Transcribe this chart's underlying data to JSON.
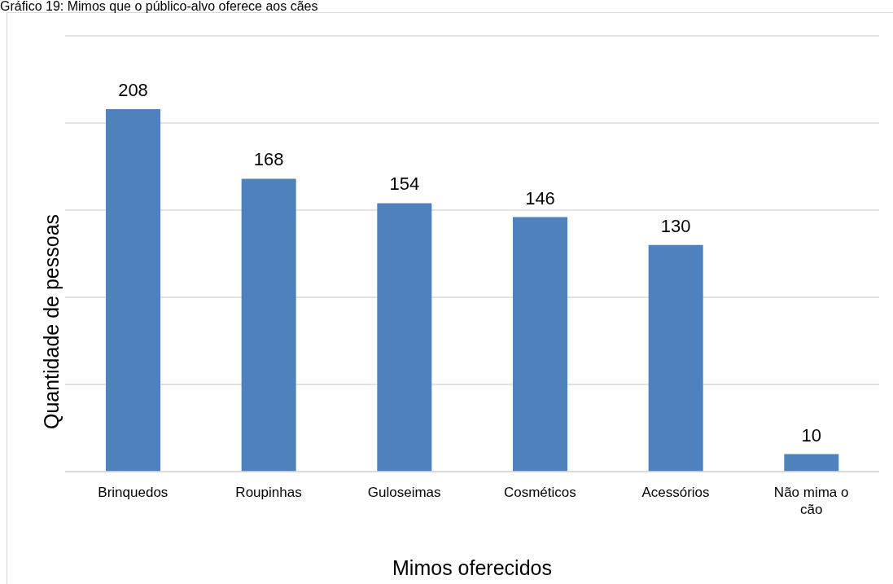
{
  "chart_data": {
    "type": "bar",
    "title": "Gráfico 19: Mimos que o público-alvo oferece aos cães",
    "xlabel": "Mimos oferecidos",
    "ylabel": "Quantidade de pessoas",
    "categories": [
      "Brinquedos",
      "Roupinhas",
      "Guloseimas",
      "Cosméticos",
      "Acessórios",
      "Não mima o cão"
    ],
    "values": [
      208,
      168,
      154,
      146,
      130,
      10
    ],
    "color": "#4f81bd",
    "tick_labels": "x",
    "grid": "y",
    "data_labels": true
  }
}
